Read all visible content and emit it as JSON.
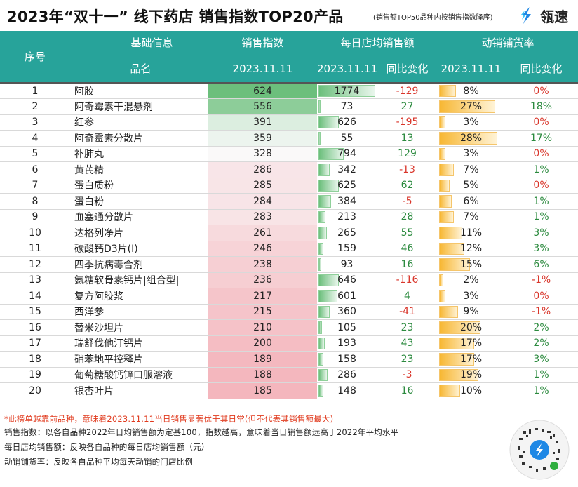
{
  "header": {
    "title": "2023年“双十一” 线下药店 销售指数TOP20产品",
    "subtitle": "(销售额TOP50品种内按销售指数降序)",
    "brand": "瓴速"
  },
  "table_head": {
    "col_index": "序号",
    "group_basic": "基础信息",
    "col_name": "品名",
    "group_index": "销售指数",
    "group_avg": "每日店均销售额",
    "group_rate": "动销铺货率",
    "date": "2023.11.11",
    "yoy": "同比变化"
  },
  "colors": {
    "header_bg": "#27a39a",
    "index_high": "#6cbf7c",
    "index_low": "#f4b6bd",
    "avg_bar": "#6cbf7c",
    "rate_bar": "#f7b733",
    "negative": "#d9362b",
    "positive": "#2b8a3e"
  },
  "chart_data": {
    "type": "table",
    "columns": [
      "序号",
      "品名",
      "销售指数 2023.11.11",
      "每日店均销售额 2023.11.11",
      "每日店均销售额 同比变化",
      "动销铺货率 2023.11.11",
      "动销铺货率 同比变化"
    ],
    "rows": [
      {
        "rank": "1",
        "name": "阿胶",
        "index": 624,
        "avg": 1774,
        "avg_yoy": "-129",
        "rate": 8,
        "rate_label": "8%",
        "rate_yoy": "0%"
      },
      {
        "rank": "2",
        "name": "阿奇霉素干混悬剂",
        "index": 556,
        "avg": 73,
        "avg_yoy": "27",
        "rate": 27,
        "rate_label": "27%",
        "rate_yoy": "18%"
      },
      {
        "rank": "3",
        "name": "红参",
        "index": 391,
        "avg": 626,
        "avg_yoy": "-195",
        "rate": 3,
        "rate_label": "3%",
        "rate_yoy": "0%"
      },
      {
        "rank": "4",
        "name": "阿奇霉素分散片",
        "index": 359,
        "avg": 55,
        "avg_yoy": "13",
        "rate": 28,
        "rate_label": "28%",
        "rate_yoy": "17%"
      },
      {
        "rank": "5",
        "name": "补肺丸",
        "index": 328,
        "avg": 794,
        "avg_yoy": "129",
        "rate": 3,
        "rate_label": "3%",
        "rate_yoy": "0%"
      },
      {
        "rank": "6",
        "name": "黄芪精",
        "index": 286,
        "avg": 342,
        "avg_yoy": "-13",
        "rate": 7,
        "rate_label": "7%",
        "rate_yoy": "1%"
      },
      {
        "rank": "7",
        "name": "蛋白质粉",
        "index": 285,
        "avg": 625,
        "avg_yoy": "62",
        "rate": 5,
        "rate_label": "5%",
        "rate_yoy": "0%"
      },
      {
        "rank": "8",
        "name": "蛋白粉",
        "index": 284,
        "avg": 384,
        "avg_yoy": "-5",
        "rate": 6,
        "rate_label": "6%",
        "rate_yoy": "1%"
      },
      {
        "rank": "9",
        "name": "血塞通分散片",
        "index": 283,
        "avg": 213,
        "avg_yoy": "28",
        "rate": 7,
        "rate_label": "7%",
        "rate_yoy": "1%"
      },
      {
        "rank": "10",
        "name": "达格列净片",
        "index": 261,
        "avg": 265,
        "avg_yoy": "55",
        "rate": 11,
        "rate_label": "11%",
        "rate_yoy": "3%"
      },
      {
        "rank": "11",
        "name": "碳酸钙D3片(Ⅰ)",
        "index": 246,
        "avg": 159,
        "avg_yoy": "46",
        "rate": 12,
        "rate_label": "12%",
        "rate_yoy": "3%"
      },
      {
        "rank": "12",
        "name": "四季抗病毒合剂",
        "index": 238,
        "avg": 93,
        "avg_yoy": "16",
        "rate": 15,
        "rate_label": "15%",
        "rate_yoy": "6%"
      },
      {
        "rank": "13",
        "name": "氨糖软骨素钙片|组合型|",
        "index": 236,
        "avg": 646,
        "avg_yoy": "-116",
        "rate": 2,
        "rate_label": "2%",
        "rate_yoy": "-1%"
      },
      {
        "rank": "14",
        "name": "复方阿胶浆",
        "index": 217,
        "avg": 601,
        "avg_yoy": "4",
        "rate": 3,
        "rate_label": "3%",
        "rate_yoy": "0%"
      },
      {
        "rank": "15",
        "name": "西洋参",
        "index": 215,
        "avg": 360,
        "avg_yoy": "-41",
        "rate": 9,
        "rate_label": "9%",
        "rate_yoy": "-1%"
      },
      {
        "rank": "16",
        "name": "替米沙坦片",
        "index": 210,
        "avg": 105,
        "avg_yoy": "23",
        "rate": 20,
        "rate_label": "20%",
        "rate_yoy": "2%"
      },
      {
        "rank": "17",
        "name": "瑞舒伐他汀钙片",
        "index": 200,
        "avg": 193,
        "avg_yoy": "43",
        "rate": 17,
        "rate_label": "17%",
        "rate_yoy": "2%"
      },
      {
        "rank": "18",
        "name": "硝苯地平控释片",
        "index": 189,
        "avg": 158,
        "avg_yoy": "23",
        "rate": 17,
        "rate_label": "17%",
        "rate_yoy": "3%"
      },
      {
        "rank": "19",
        "name": "葡萄糖酸钙锌口服溶液",
        "index": 188,
        "avg": 286,
        "avg_yoy": "-3",
        "rate": 19,
        "rate_label": "19%",
        "rate_yoy": "1%"
      },
      {
        "rank": "20",
        "name": "银杏叶片",
        "index": 185,
        "avg": 148,
        "avg_yoy": "16",
        "rate": 10,
        "rate_label": "10%",
        "rate_yoy": "1%"
      }
    ]
  },
  "footnotes": {
    "note_red": "*此榜单越靠前品种，意味着2023.11.11当日销售显著优于其日常(但不代表其销售额最大)",
    "note_index": "销售指数：以各自品种2022年日均销售额为定基100，指数越高，意味着当日销售额远高于2022年平均水平",
    "note_avg": "每日店均销售额：反映各自品种的每日店均销售额（元）",
    "note_rate": "动销铺货率：反映各自品种平均每天动销的门店比例"
  }
}
